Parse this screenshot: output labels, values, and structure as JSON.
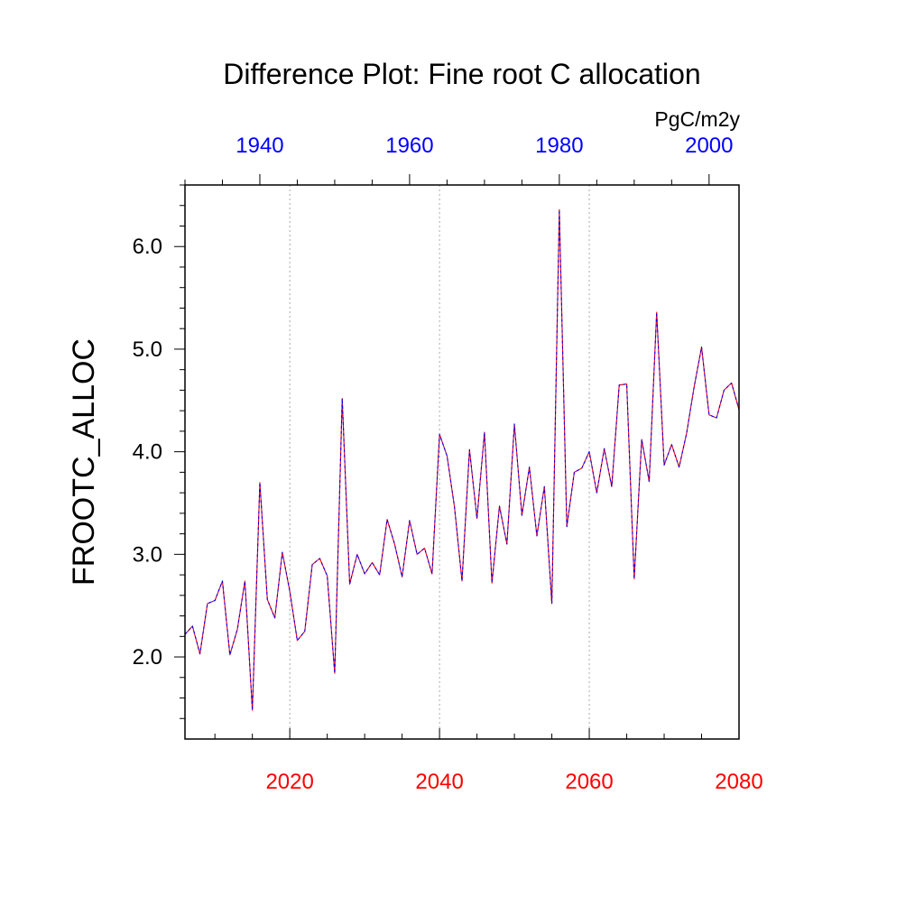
{
  "chart_data": {
    "type": "line",
    "title": "Difference Plot: Fine root C allocation",
    "ylabel": "FROOTC_ALLOC",
    "units": "PgC/m2y",
    "ylim": [
      1.2,
      6.6
    ],
    "y_ticks": [
      "2.0",
      "3.0",
      "4.0",
      "5.0",
      "6.0"
    ],
    "y_tick_values": [
      2.0,
      3.0,
      4.0,
      5.0,
      6.0
    ],
    "x_bottom": {
      "range": [
        2006,
        2080
      ],
      "ticks": [
        "2020",
        "2040",
        "2060",
        "2080"
      ],
      "tick_values": [
        2020,
        2040,
        2060,
        2080
      ],
      "color": "#ff0000"
    },
    "x_top": {
      "range": [
        1930,
        2004
      ],
      "ticks": [
        "1940",
        "1960",
        "1980",
        "2000"
      ],
      "tick_values": [
        1940,
        1960,
        1980,
        2000
      ],
      "color": "#0000ff"
    },
    "grid": "vertical dotted",
    "series": [
      {
        "axis": "bottom",
        "color": "#ff0000",
        "style": "solid",
        "x": [
          2006,
          2007,
          2008,
          2009,
          2010,
          2011,
          2012,
          2013,
          2014,
          2015,
          2016,
          2017,
          2018,
          2019,
          2020,
          2021,
          2022,
          2023,
          2024,
          2025,
          2026,
          2027,
          2028,
          2029,
          2030,
          2031,
          2032,
          2033,
          2034,
          2035,
          2036,
          2037,
          2038,
          2039,
          2040,
          2041,
          2042,
          2043,
          2044,
          2045,
          2046,
          2047,
          2048,
          2049,
          2050,
          2051,
          2052,
          2053,
          2054,
          2055,
          2056,
          2057,
          2058,
          2059,
          2060,
          2061,
          2062,
          2063,
          2064,
          2065,
          2066,
          2067,
          2068,
          2069,
          2070,
          2071,
          2072,
          2073,
          2074,
          2075,
          2076,
          2077,
          2078,
          2079,
          2080
        ],
        "values": [
          2.22,
          2.3,
          2.03,
          2.52,
          2.55,
          2.74,
          2.02,
          2.27,
          2.74,
          1.48,
          3.7,
          2.56,
          2.38,
          3.02,
          2.64,
          2.16,
          2.25,
          2.9,
          2.96,
          2.79,
          1.84,
          4.52,
          2.71,
          3.0,
          2.81,
          2.92,
          2.8,
          3.34,
          3.1,
          2.78,
          3.33,
          3.0,
          3.06,
          2.81,
          4.17,
          3.96,
          3.46,
          2.74,
          4.02,
          3.35,
          4.19,
          2.72,
          3.47,
          3.1,
          4.27,
          3.38,
          3.85,
          3.18,
          3.66,
          2.52,
          6.36,
          3.27,
          3.8,
          3.84,
          4.0,
          3.6,
          4.03,
          3.66,
          4.65,
          4.66,
          2.76,
          4.12,
          3.71,
          5.36,
          3.87,
          4.07,
          3.85,
          4.18,
          4.63,
          5.02,
          4.36,
          4.33,
          4.6,
          4.67,
          4.41
        ]
      },
      {
        "axis": "top",
        "color": "#0000ff",
        "style": "dashed",
        "x": [
          1930,
          1931,
          1932,
          1933,
          1934,
          1935,
          1936,
          1937,
          1938,
          1939,
          1940,
          1941,
          1942,
          1943,
          1944,
          1945,
          1946,
          1947,
          1948,
          1949,
          1950,
          1951,
          1952,
          1953,
          1954,
          1955,
          1956,
          1957,
          1958,
          1959,
          1960,
          1961,
          1962,
          1963,
          1964,
          1965,
          1966,
          1967,
          1968,
          1969,
          1970,
          1971,
          1972,
          1973,
          1974,
          1975,
          1976,
          1977,
          1978,
          1979,
          1980,
          1981,
          1982,
          1983,
          1984,
          1985,
          1986,
          1987,
          1988,
          1989,
          1990,
          1991,
          1992,
          1993,
          1994,
          1995,
          1996,
          1997,
          1998,
          1999,
          2000,
          2001,
          2002,
          2003,
          2004
        ],
        "values": [
          2.22,
          2.3,
          2.03,
          2.52,
          2.55,
          2.74,
          2.02,
          2.27,
          2.74,
          1.48,
          3.7,
          2.56,
          2.38,
          3.02,
          2.64,
          2.16,
          2.25,
          2.9,
          2.96,
          2.79,
          1.84,
          4.52,
          2.71,
          3.0,
          2.81,
          2.92,
          2.8,
          3.34,
          3.1,
          2.78,
          3.33,
          3.0,
          3.06,
          2.81,
          4.17,
          3.96,
          3.46,
          2.74,
          4.02,
          3.35,
          4.19,
          2.72,
          3.47,
          3.1,
          4.27,
          3.38,
          3.85,
          3.18,
          3.66,
          2.52,
          6.36,
          3.27,
          3.8,
          3.84,
          4.0,
          3.6,
          4.03,
          3.66,
          4.65,
          4.66,
          2.76,
          4.12,
          3.71,
          5.36,
          3.87,
          4.07,
          3.85,
          4.18,
          4.63,
          5.02,
          4.36,
          4.33,
          4.6,
          4.67,
          4.41
        ]
      }
    ]
  }
}
